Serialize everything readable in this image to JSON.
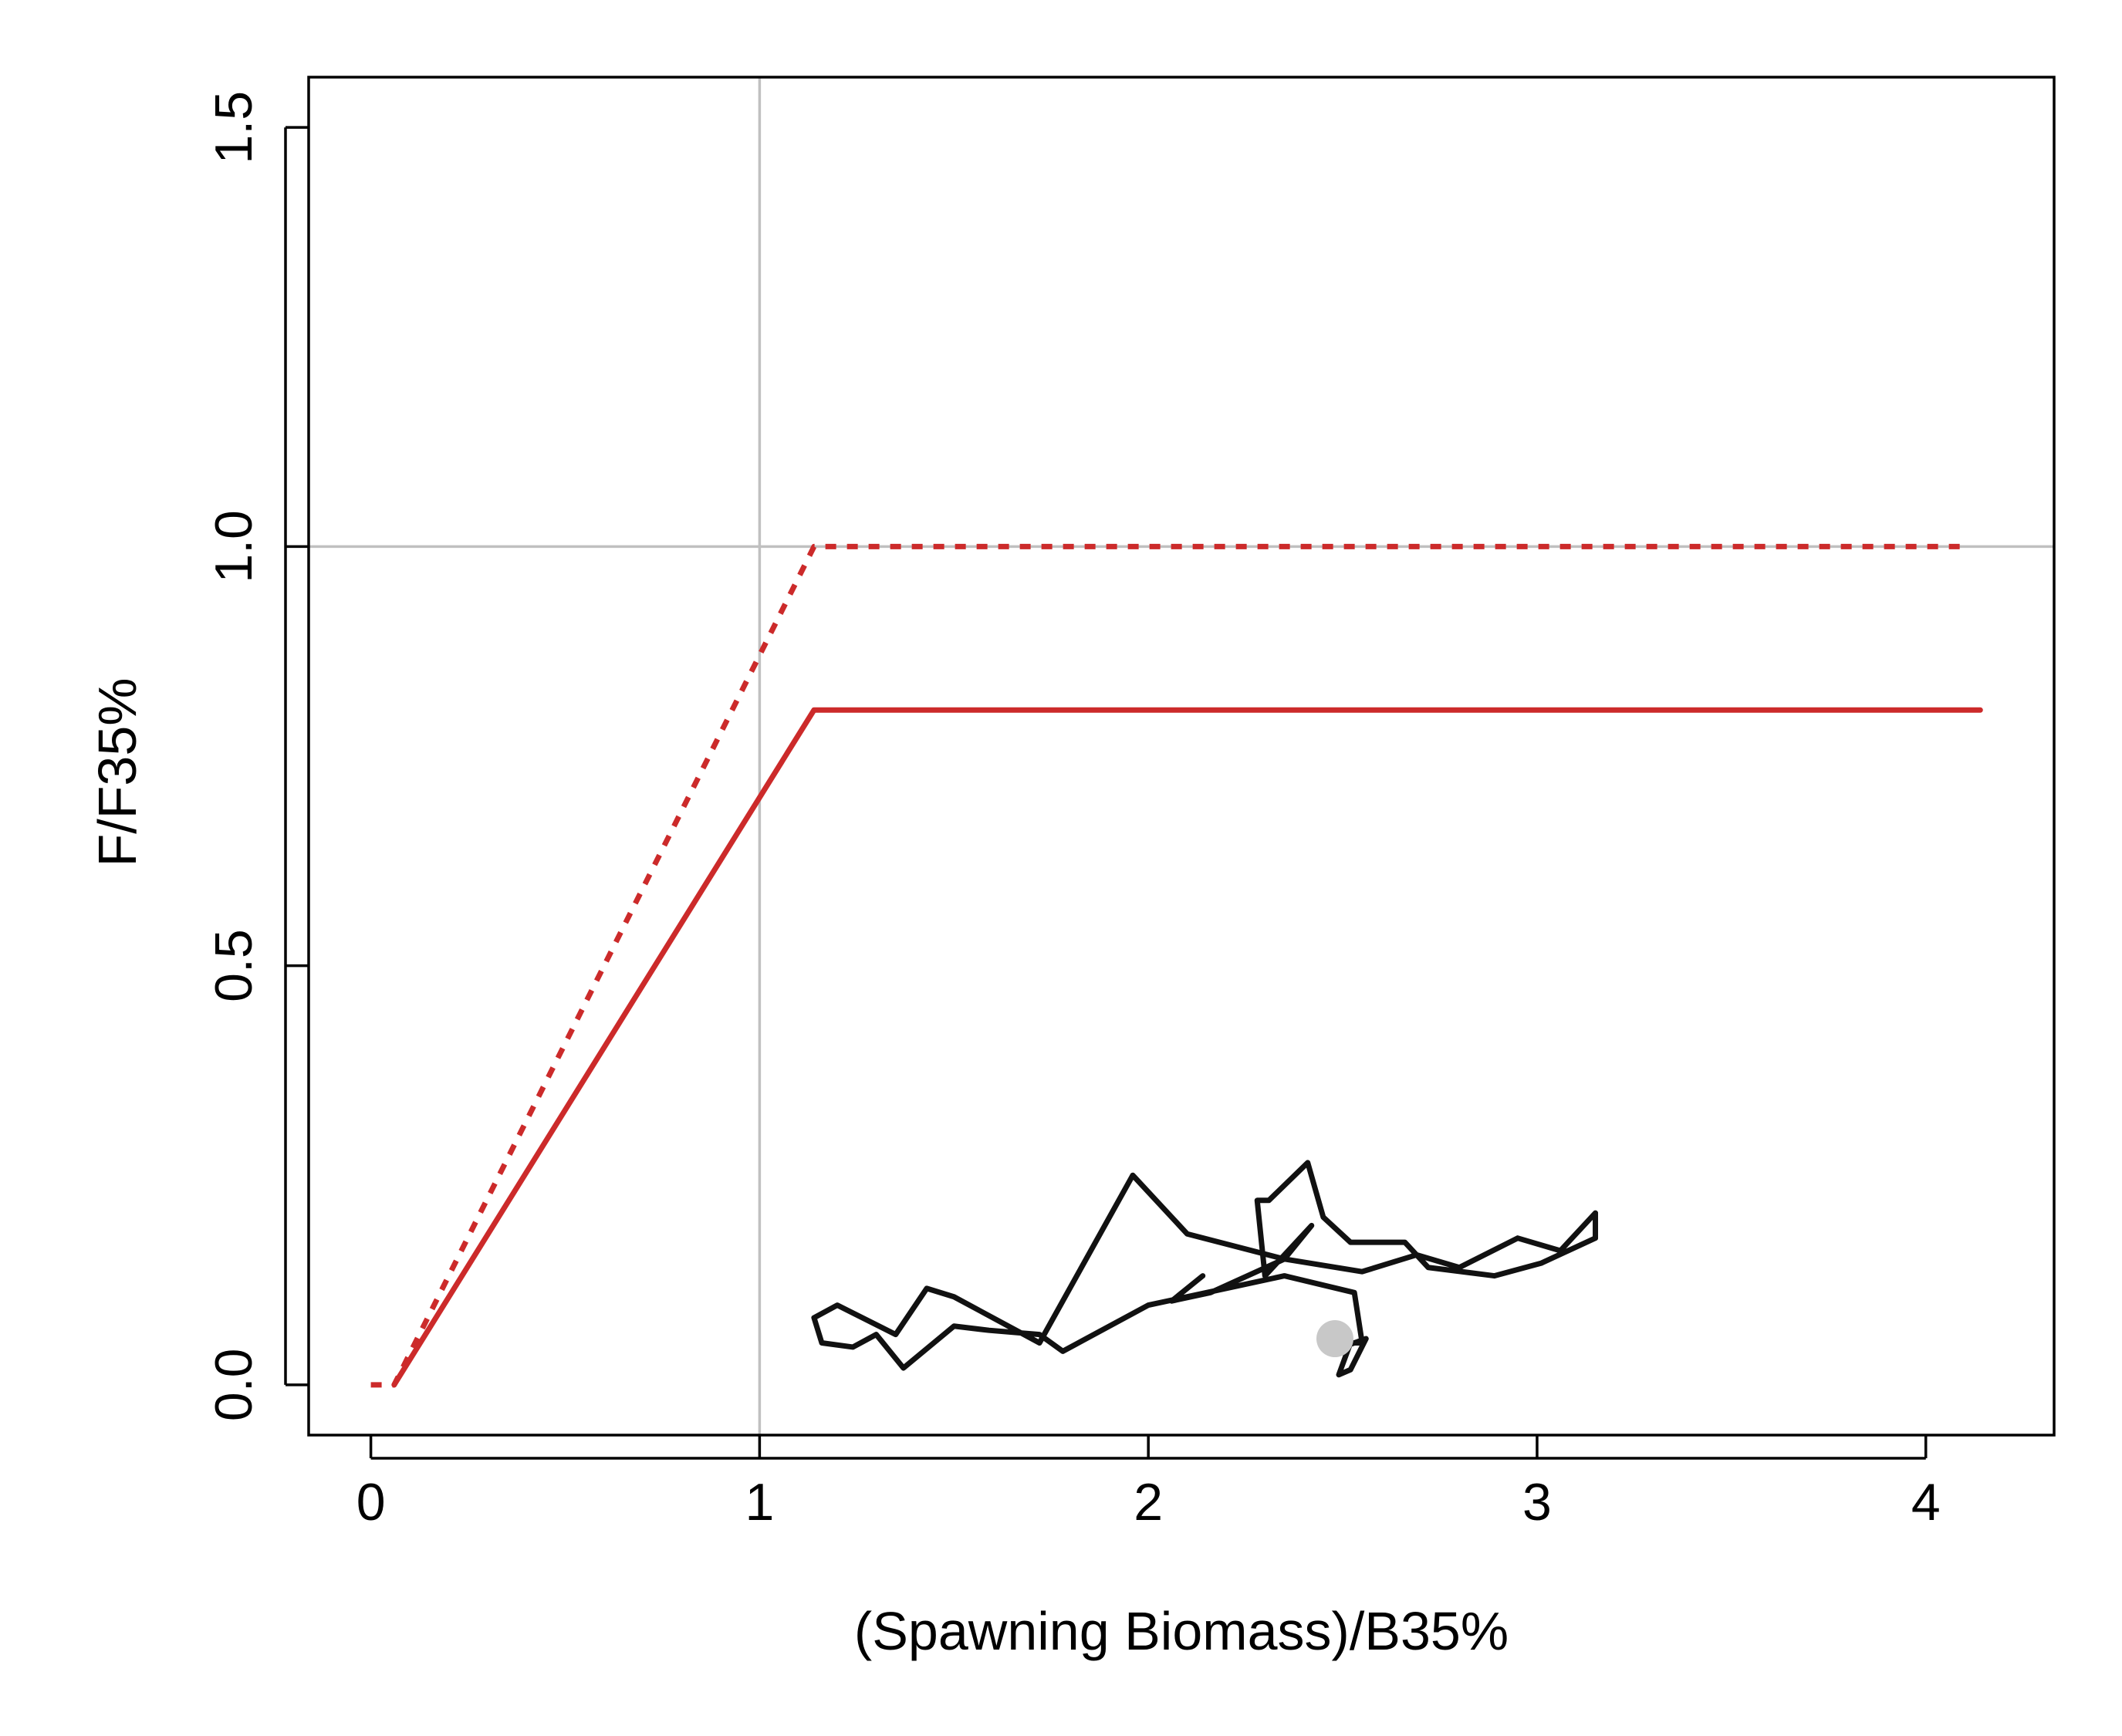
{
  "chart_data": {
    "type": "line",
    "xlabel": "(Spawning Biomass)/B35%",
    "ylabel": "F/F35%",
    "xlim": [
      -0.16,
      4.33
    ],
    "ylim": [
      -0.06,
      1.56
    ],
    "x_ticks": [
      0,
      1,
      2,
      3,
      4
    ],
    "x_tick_labels": [
      "0",
      "1",
      "2",
      "3",
      "4"
    ],
    "y_ticks": [
      0.0,
      0.5,
      1.0,
      1.5
    ],
    "y_tick_labels": [
      "0.0",
      "0.5",
      "1.0",
      "1.5"
    ],
    "grid": false,
    "reference_lines": {
      "x": 1,
      "y": 1,
      "color": "#c0c0c0"
    },
    "series": [
      {
        "style": "dotted",
        "color": "#cc2a2a",
        "x": [
          0.0,
          0.06,
          1.14,
          4.1
        ],
        "y": [
          0.0,
          0.0,
          1.0,
          1.0
        ]
      },
      {
        "style": "solid",
        "color": "#cc2a2a",
        "x": [
          0.06,
          1.14,
          4.14
        ],
        "y": [
          0.0,
          0.805,
          0.805
        ]
      },
      {
        "style": "solid",
        "color": "#111111",
        "x": [
          2.14,
          2.06,
          2.16,
          2.35,
          2.42,
          2.3,
          2.28,
          2.31,
          2.41,
          2.45,
          2.52,
          2.59,
          2.66,
          2.72,
          2.89,
          3.01,
          3.15,
          3.15,
          3.06,
          2.95,
          2.8,
          2.69,
          2.55,
          2.35,
          2.1,
          1.96,
          1.72,
          1.5,
          1.43,
          1.35,
          1.2,
          1.14,
          1.16,
          1.24,
          1.3,
          1.37,
          1.5,
          1.59,
          1.72,
          1.78,
          2.0,
          2.35,
          2.53,
          2.55,
          2.52,
          2.49,
          2.52,
          2.56,
          2.47
        ],
        "y": [
          0.13,
          0.1,
          0.11,
          0.15,
          0.19,
          0.13,
          0.22,
          0.22,
          0.265,
          0.2,
          0.17,
          0.17,
          0.17,
          0.14,
          0.13,
          0.145,
          0.175,
          0.205,
          0.16,
          0.175,
          0.14,
          0.155,
          0.135,
          0.15,
          0.18,
          0.25,
          0.05,
          0.105,
          0.115,
          0.06,
          0.095,
          0.08,
          0.05,
          0.045,
          0.06,
          0.02,
          0.07,
          0.065,
          0.06,
          0.04,
          0.095,
          0.13,
          0.11,
          0.05,
          0.05,
          0.012,
          0.018,
          0.055,
          0.04
        ]
      },
      {
        "style": "point",
        "color": "#c8c8c8",
        "x": [
          2.48
        ],
        "y": [
          0.055
        ]
      }
    ]
  }
}
